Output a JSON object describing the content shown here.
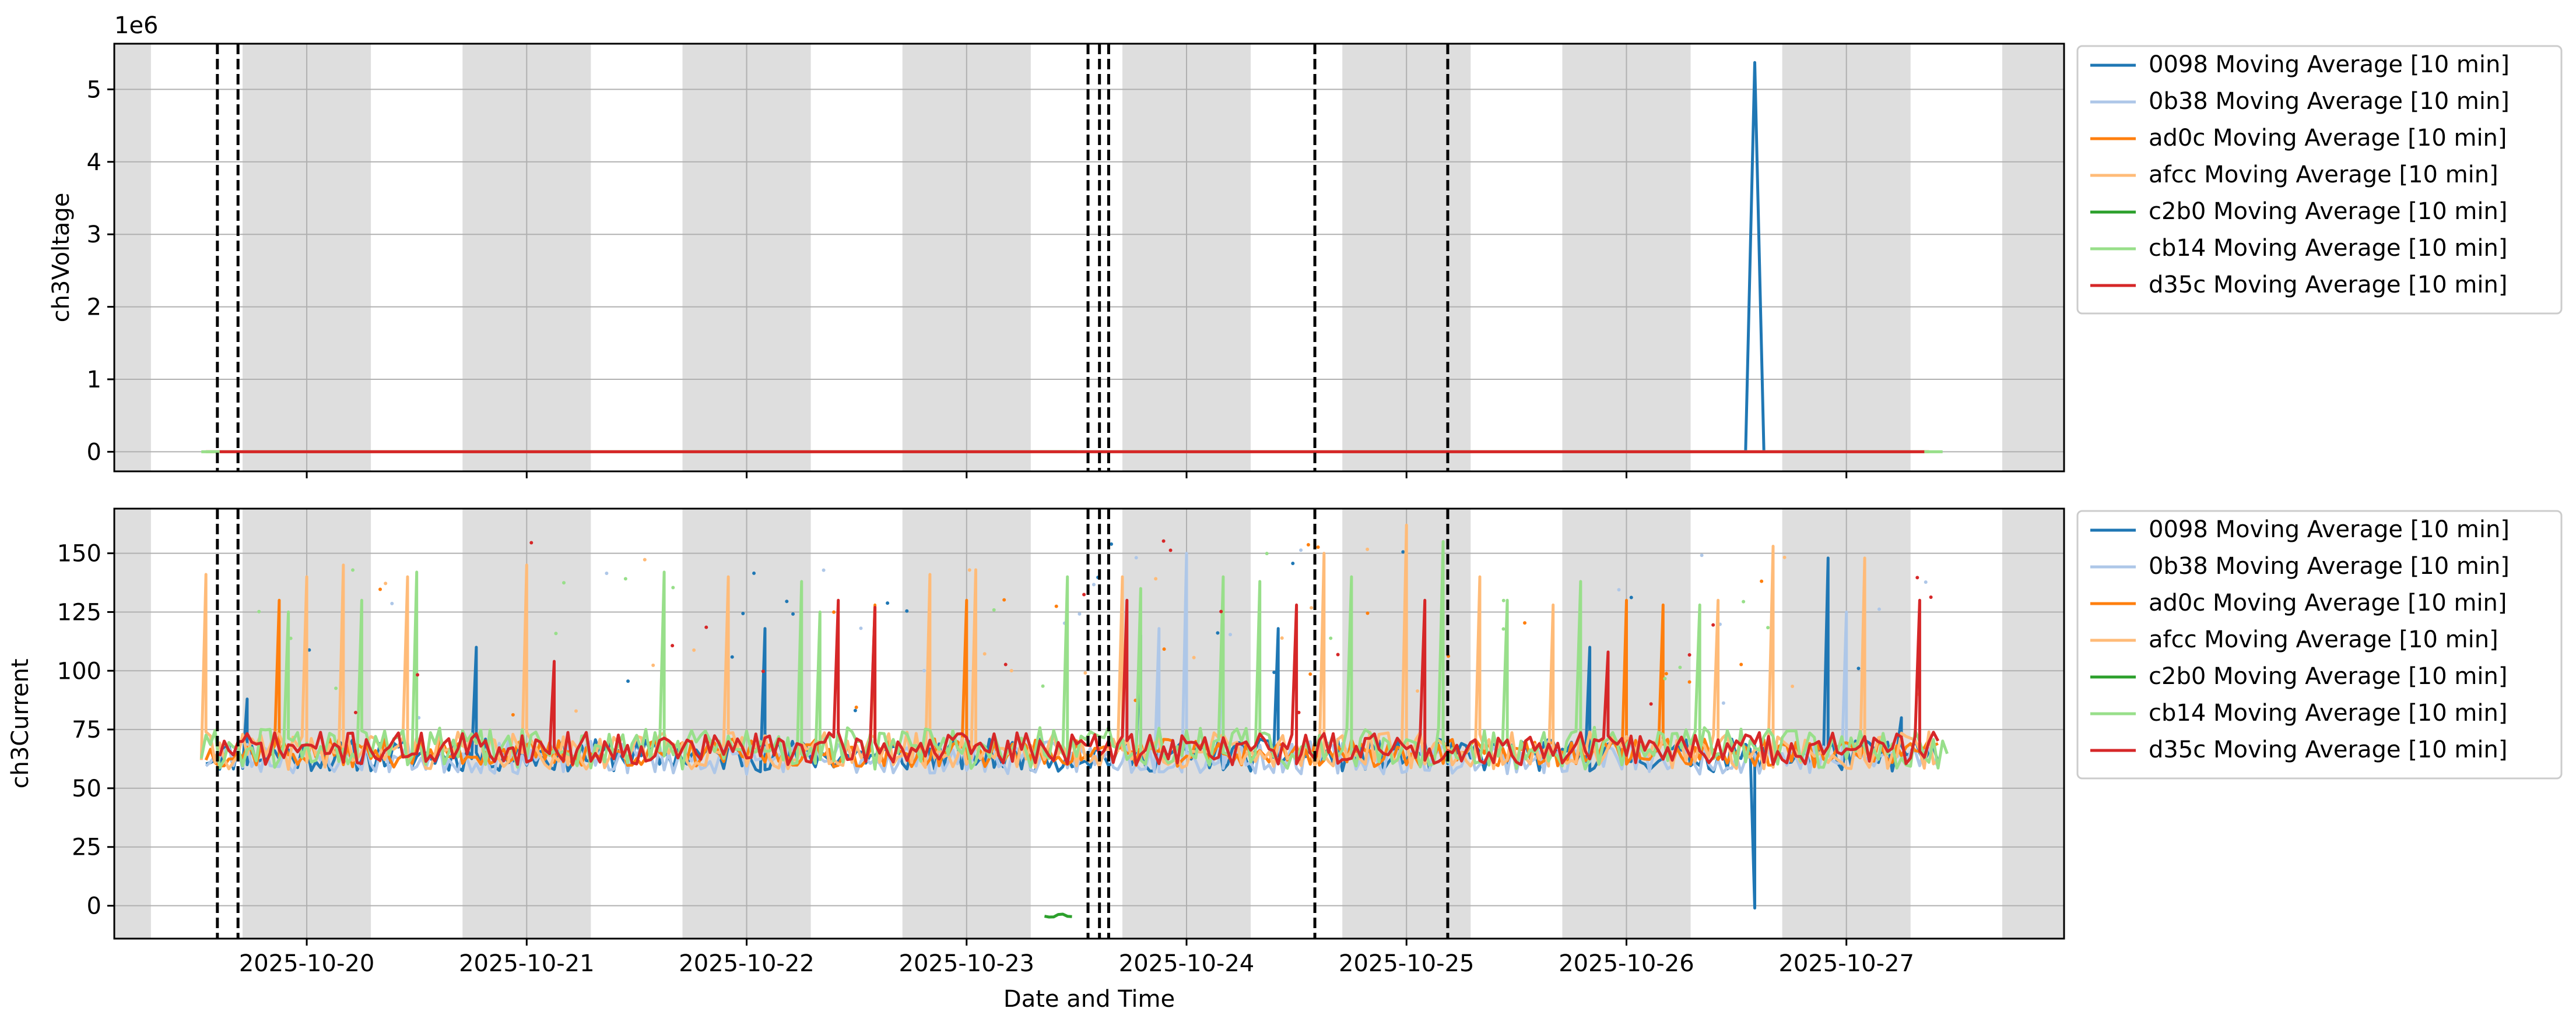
{
  "figure": {
    "xlabel": "Date and Time",
    "x_tick_labels": [
      "2025-10-20",
      "2025-10-21",
      "2025-10-22",
      "2025-10-23",
      "2025-10-24",
      "2025-10-25",
      "2025-10-26",
      "2025-10-27"
    ]
  },
  "chart_data": [
    {
      "type": "line",
      "ylabel": "ch3Voltage",
      "y_offset_label": "1e6",
      "xlim": [
        "2025-10-19 03:00",
        "2025-10-27 23:45"
      ],
      "ylim": [
        -0.27,
        5.63
      ],
      "y_unit_scale": 1000000,
      "y_ticks": [
        0,
        1,
        2,
        3,
        4,
        5
      ],
      "grid": true,
      "legend_position": "outside-right-top",
      "night_bands": [
        [
          "2025-10-19 00:00",
          "2025-10-19 07:00"
        ],
        [
          "2025-10-19 17:00",
          "2025-10-20 07:00"
        ],
        [
          "2025-10-20 17:00",
          "2025-10-21 07:00"
        ],
        [
          "2025-10-21 17:00",
          "2025-10-22 07:00"
        ],
        [
          "2025-10-22 17:00",
          "2025-10-23 07:00"
        ],
        [
          "2025-10-23 17:00",
          "2025-10-24 07:00"
        ],
        [
          "2025-10-24 17:00",
          "2025-10-25 07:00"
        ],
        [
          "2025-10-25 17:00",
          "2025-10-26 07:00"
        ],
        [
          "2025-10-26 17:00",
          "2025-10-27 07:00"
        ],
        [
          "2025-10-27 17:00",
          "2025-10-28 00:00"
        ]
      ],
      "event_lines": [
        "2025-10-19 14:15",
        "2025-10-19 16:30",
        "2025-10-23 13:15",
        "2025-10-23 14:30",
        "2025-10-23 15:30",
        "2025-10-24 14:00",
        "2025-10-25 04:30"
      ],
      "series": [
        {
          "name": "0098 Moving Average [10 min]",
          "color": "#1f77b4",
          "base": 0,
          "range": [
            "2025-10-19 13:00",
            "2025-10-27 10:00"
          ],
          "points": [
            [
              "2025-10-26 13:00",
              0
            ],
            [
              "2025-10-26 14:00",
              5.37
            ],
            [
              "2025-10-26 15:00",
              0
            ]
          ]
        },
        {
          "name": "0b38 Moving Average [10 min]",
          "color": "#aec7e8",
          "base": 0,
          "range": [
            "2025-10-19 13:00",
            "2025-10-27 10:00"
          ]
        },
        {
          "name": "ad0c Moving Average [10 min]",
          "color": "#ff7f0e",
          "base": 0,
          "range": [
            "2025-10-19 13:00",
            "2025-10-27 10:00"
          ]
        },
        {
          "name": "afcc Moving Average [10 min]",
          "color": "#ffbb78",
          "base": 0,
          "range": [
            "2025-10-19 13:00",
            "2025-10-27 10:00"
          ]
        },
        {
          "name": "c2b0 Moving Average [10 min]",
          "color": "#2ca02c",
          "base": 0,
          "range": [
            "2025-10-23 08:00",
            "2025-10-23 12:00"
          ]
        },
        {
          "name": "cb14 Moving Average [10 min]",
          "color": "#98df8a",
          "base": 0,
          "range": [
            "2025-10-19 12:30",
            "2025-10-27 11:00"
          ]
        },
        {
          "name": "d35c Moving Average [10 min]",
          "color": "#d62728",
          "base": 0,
          "range": [
            "2025-10-19 14:30",
            "2025-10-27 10:00"
          ]
        }
      ]
    },
    {
      "type": "line",
      "ylabel": "ch3Current",
      "xlim": [
        "2025-10-19 03:00",
        "2025-10-27 23:45"
      ],
      "ylim": [
        -14,
        169
      ],
      "y_ticks": [
        0,
        25,
        50,
        75,
        100,
        125,
        150
      ],
      "grid": true,
      "legend_position": "outside-right-top",
      "night_bands": [
        [
          "2025-10-19 00:00",
          "2025-10-19 07:00"
        ],
        [
          "2025-10-19 17:00",
          "2025-10-20 07:00"
        ],
        [
          "2025-10-20 17:00",
          "2025-10-21 07:00"
        ],
        [
          "2025-10-21 17:00",
          "2025-10-22 07:00"
        ],
        [
          "2025-10-22 17:00",
          "2025-10-23 07:00"
        ],
        [
          "2025-10-23 17:00",
          "2025-10-24 07:00"
        ],
        [
          "2025-10-24 17:00",
          "2025-10-25 07:00"
        ],
        [
          "2025-10-25 17:00",
          "2025-10-26 07:00"
        ],
        [
          "2025-10-26 17:00",
          "2025-10-27 07:00"
        ],
        [
          "2025-10-27 17:00",
          "2025-10-28 00:00"
        ]
      ],
      "event_lines": [
        "2025-10-19 14:15",
        "2025-10-19 16:30",
        "2025-10-23 13:15",
        "2025-10-23 14:30",
        "2025-10-23 15:30",
        "2025-10-24 14:00",
        "2025-10-25 04:30"
      ],
      "series": [
        {
          "name": "0098 Moving Average [10 min]",
          "color": "#1f77b4",
          "base": 64,
          "noise": 7,
          "range": [
            "2025-10-19 13:00",
            "2025-10-27 10:00"
          ],
          "seed": 11,
          "points": [
            [
              "2025-10-19 17:30",
              88
            ],
            [
              "2025-10-20 18:30",
              110
            ],
            [
              "2025-10-22 02:00",
              118
            ],
            [
              "2025-10-23 19:00",
              115
            ],
            [
              "2025-10-24 10:00",
              118
            ],
            [
              "2025-10-25 20:00",
              110
            ],
            [
              "2025-10-26 14:00",
              -1
            ],
            [
              "2025-10-26 22:00",
              148
            ],
            [
              "2025-10-27 06:00",
              80
            ]
          ]
        },
        {
          "name": "0b38 Moving Average [10 min]",
          "color": "#aec7e8",
          "base": 63,
          "noise": 7,
          "range": [
            "2025-10-19 13:00",
            "2025-10-27 10:00"
          ],
          "seed": 23,
          "points": [
            [
              "2025-10-23 21:00",
              118
            ],
            [
              "2025-10-24 00:00",
              150
            ],
            [
              "2025-10-24 04:00",
              120
            ],
            [
              "2025-10-27 00:00",
              125
            ]
          ]
        },
        {
          "name": "ad0c Moving Average [10 min]",
          "color": "#ff7f0e",
          "base": 65,
          "noise": 6,
          "range": [
            "2025-10-19 13:00",
            "2025-10-27 10:00"
          ],
          "seed": 37,
          "points": [
            [
              "2025-10-19 21:00",
              130
            ],
            [
              "2025-10-22 14:00",
              128
            ],
            [
              "2025-10-23 00:00",
              130
            ],
            [
              "2025-10-26 00:00",
              130
            ],
            [
              "2025-10-26 04:00",
              128
            ]
          ]
        },
        {
          "name": "afcc Moving Average [10 min]",
          "color": "#ffbb78",
          "base": 66,
          "noise": 8,
          "range": [
            "2025-10-19 12:30",
            "2025-10-27 10:00"
          ],
          "seed": 41,
          "points": [
            [
              "2025-10-19 13:00",
              141
            ],
            [
              "2025-10-20 00:00",
              140
            ],
            [
              "2025-10-20 04:00",
              145
            ],
            [
              "2025-10-20 11:00",
              140
            ],
            [
              "2025-10-21 00:00",
              145
            ],
            [
              "2025-10-21 22:00",
              140
            ],
            [
              "2025-10-22 20:00",
              141
            ],
            [
              "2025-10-23 01:00",
              143
            ],
            [
              "2025-10-23 17:00",
              140
            ],
            [
              "2025-10-24 15:00",
              150
            ],
            [
              "2025-10-25 00:00",
              162
            ],
            [
              "2025-10-25 08:00",
              140
            ],
            [
              "2025-10-25 16:00",
              128
            ],
            [
              "2025-10-26 10:00",
              130
            ],
            [
              "2025-10-26 16:00",
              153
            ],
            [
              "2025-10-27 02:00",
              148
            ]
          ]
        },
        {
          "name": "c2b0 Moving Average [10 min]",
          "color": "#2ca02c",
          "base": -4,
          "noise": 1,
          "range": [
            "2025-10-23 08:30",
            "2025-10-23 11:30"
          ],
          "seed": 53
        },
        {
          "name": "cb14 Moving Average [10 min]",
          "color": "#98df8a",
          "base": 67,
          "noise": 9,
          "range": [
            "2025-10-19 12:30",
            "2025-10-27 11:00"
          ],
          "seed": 61,
          "points": [
            [
              "2025-10-19 22:00",
              125
            ],
            [
              "2025-10-20 06:00",
              130
            ],
            [
              "2025-10-20 12:00",
              142
            ],
            [
              "2025-10-21 15:00",
              142
            ],
            [
              "2025-10-22 06:00",
              138
            ],
            [
              "2025-10-22 08:00",
              125
            ],
            [
              "2025-10-23 11:00",
              140
            ],
            [
              "2025-10-23 19:00",
              135
            ],
            [
              "2025-10-24 04:00",
              140
            ],
            [
              "2025-10-24 08:00",
              138
            ],
            [
              "2025-10-24 18:00",
              140
            ],
            [
              "2025-10-25 04:00",
              155
            ],
            [
              "2025-10-25 11:00",
              130
            ],
            [
              "2025-10-25 19:00",
              138
            ],
            [
              "2025-10-26 08:00",
              128
            ]
          ]
        },
        {
          "name": "d35c Moving Average [10 min]",
          "color": "#d62728",
          "base": 67,
          "noise": 7,
          "range": [
            "2025-10-19 14:30",
            "2025-10-27 10:00"
          ],
          "seed": 71,
          "points": [
            [
              "2025-10-21 03:00",
              104
            ],
            [
              "2025-10-22 10:00",
              130
            ],
            [
              "2025-10-22 14:00",
              127
            ],
            [
              "2025-10-23 17:30",
              130
            ],
            [
              "2025-10-24 12:00",
              128
            ],
            [
              "2025-10-25 02:00",
              130
            ],
            [
              "2025-10-25 22:00",
              108
            ],
            [
              "2025-10-27 08:00",
              130
            ]
          ]
        }
      ]
    }
  ]
}
